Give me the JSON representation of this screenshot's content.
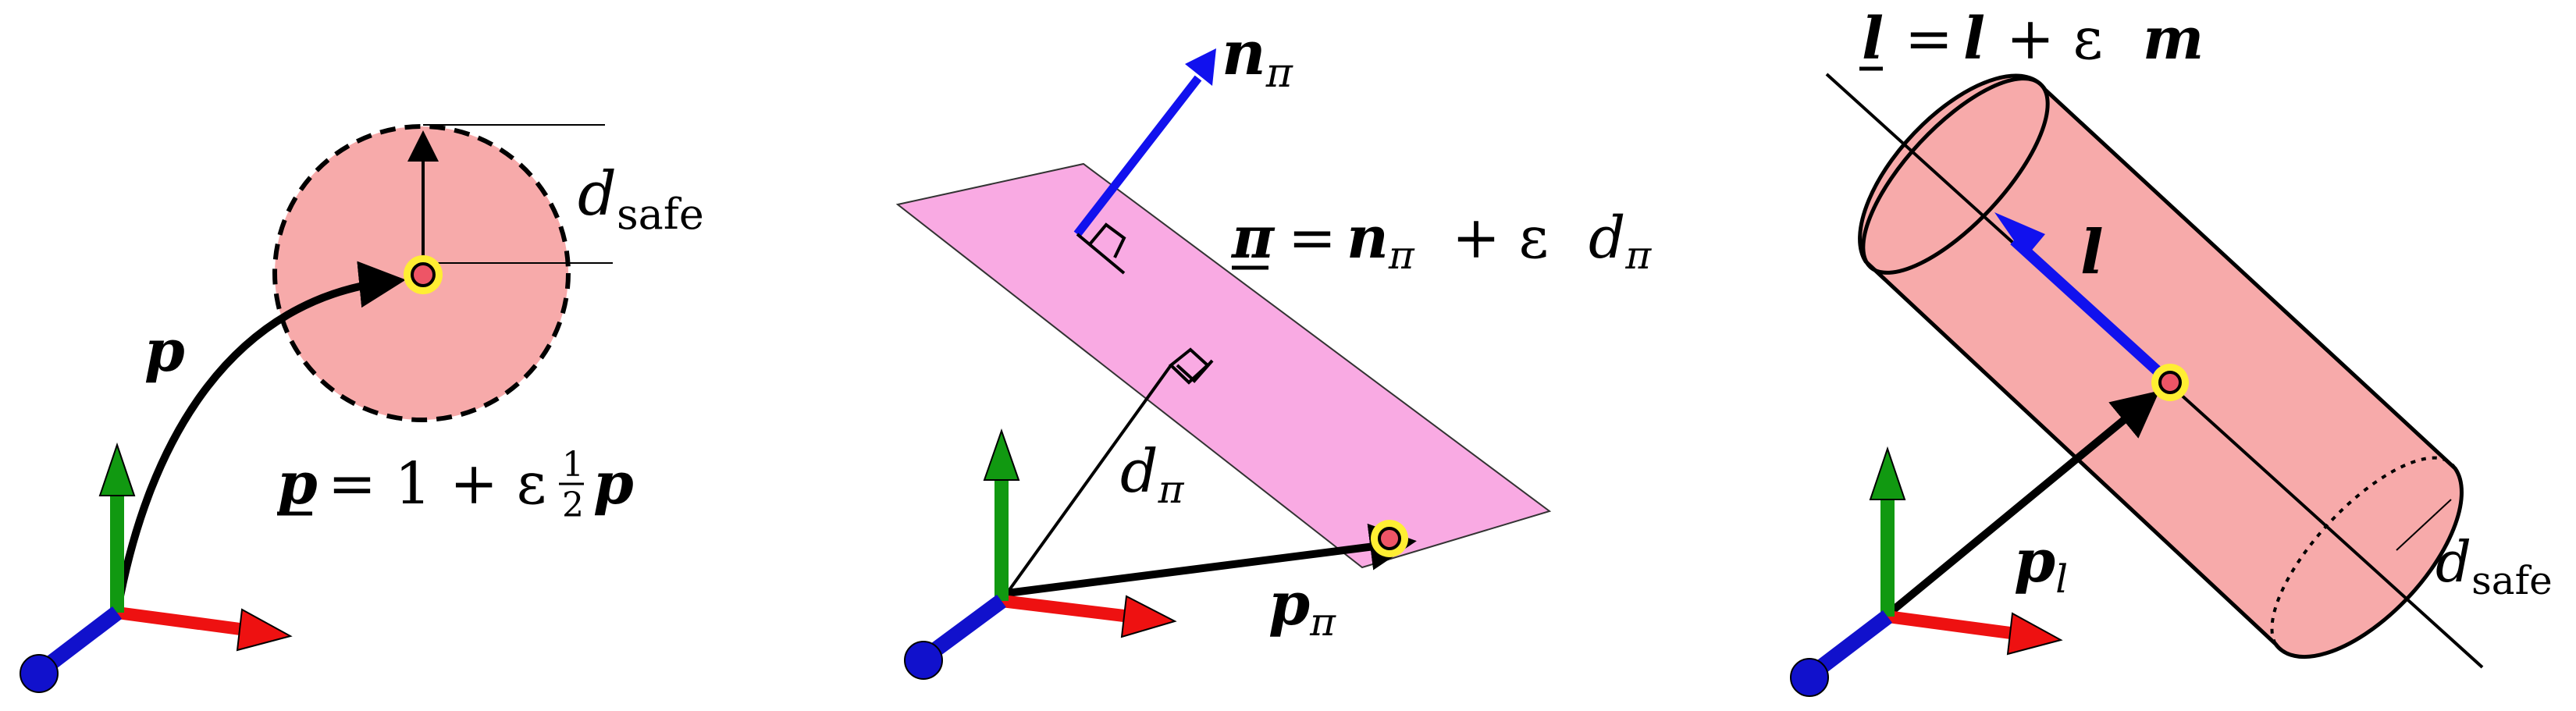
{
  "colors": {
    "x_axis": "#ee1111",
    "y_axis": "#119911",
    "z_axis": "#1111cc",
    "sphere_fill": "#f7aaaa",
    "plane_fill": "#f9aae3",
    "cylinder_fill": "#f7aaaa",
    "normal_arrow": "#1111ee",
    "line_arrow": "#1111ee",
    "point_fill": "#ee5566",
    "point_halo": "#ffee33"
  },
  "panels": [
    {
      "id": "point",
      "labels": {
        "p_vec": "p",
        "d_safe_base": "d",
        "d_safe_sub": "safe",
        "dq_p": "p",
        "dq_eq": "= 1 + ε",
        "dq_frac_num": "1",
        "dq_frac_den": "2",
        "dq_p2": "p"
      }
    },
    {
      "id": "plane",
      "labels": {
        "normal_base": "n",
        "normal_sub": "π",
        "plane_dq_lhs": "π",
        "plane_dq_eq": "=",
        "plane_dq_n": "n",
        "plane_dq_n_sub": "π",
        "plane_dq_plus": "+ ε",
        "plane_dq_d": "d",
        "plane_dq_d_sub": "π",
        "dist_base": "d",
        "dist_sub": "π",
        "point_base": "p",
        "point_sub": "π"
      }
    },
    {
      "id": "line",
      "labels": {
        "line_dq_lhs": "l",
        "line_dq_eq": "=",
        "line_dq_l": "l",
        "line_dq_plus": "+ ε",
        "line_dq_m": "m",
        "dir_label": "l",
        "point_base": "p",
        "point_sub": "l",
        "d_safe_base": "d",
        "d_safe_sub": "safe"
      }
    }
  ]
}
